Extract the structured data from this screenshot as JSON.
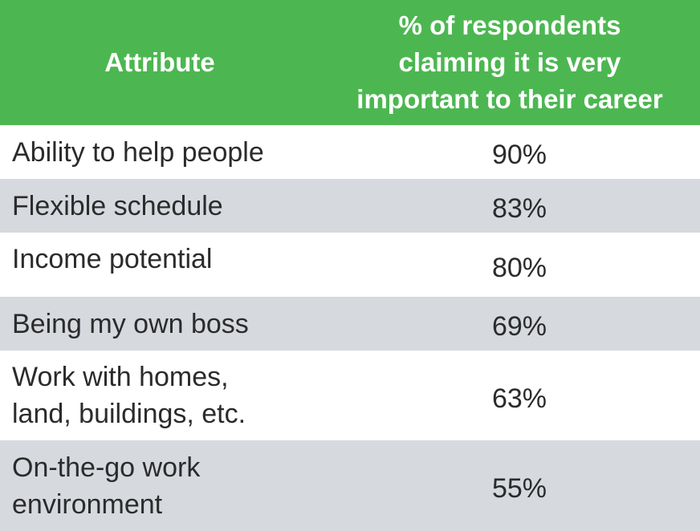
{
  "chart_data": {
    "type": "table",
    "columns": [
      "Attribute",
      "% of respondents\nclaiming it is very\nimportant to their career"
    ],
    "rows": [
      {
        "attribute": "Ability to help people",
        "value": "90%"
      },
      {
        "attribute": "Flexible schedule",
        "value": "83%"
      },
      {
        "attribute": "Income potential",
        "value": "80%"
      },
      {
        "attribute": "Being my own boss",
        "value": "69%"
      },
      {
        "attribute": "Work with homes,\nland, buildings, etc.",
        "value": "63%"
      },
      {
        "attribute": "On-the-go work\nenvironment",
        "value": "55%"
      }
    ],
    "header_color": "#4cb751",
    "stripe_color": "#d6d9de"
  }
}
